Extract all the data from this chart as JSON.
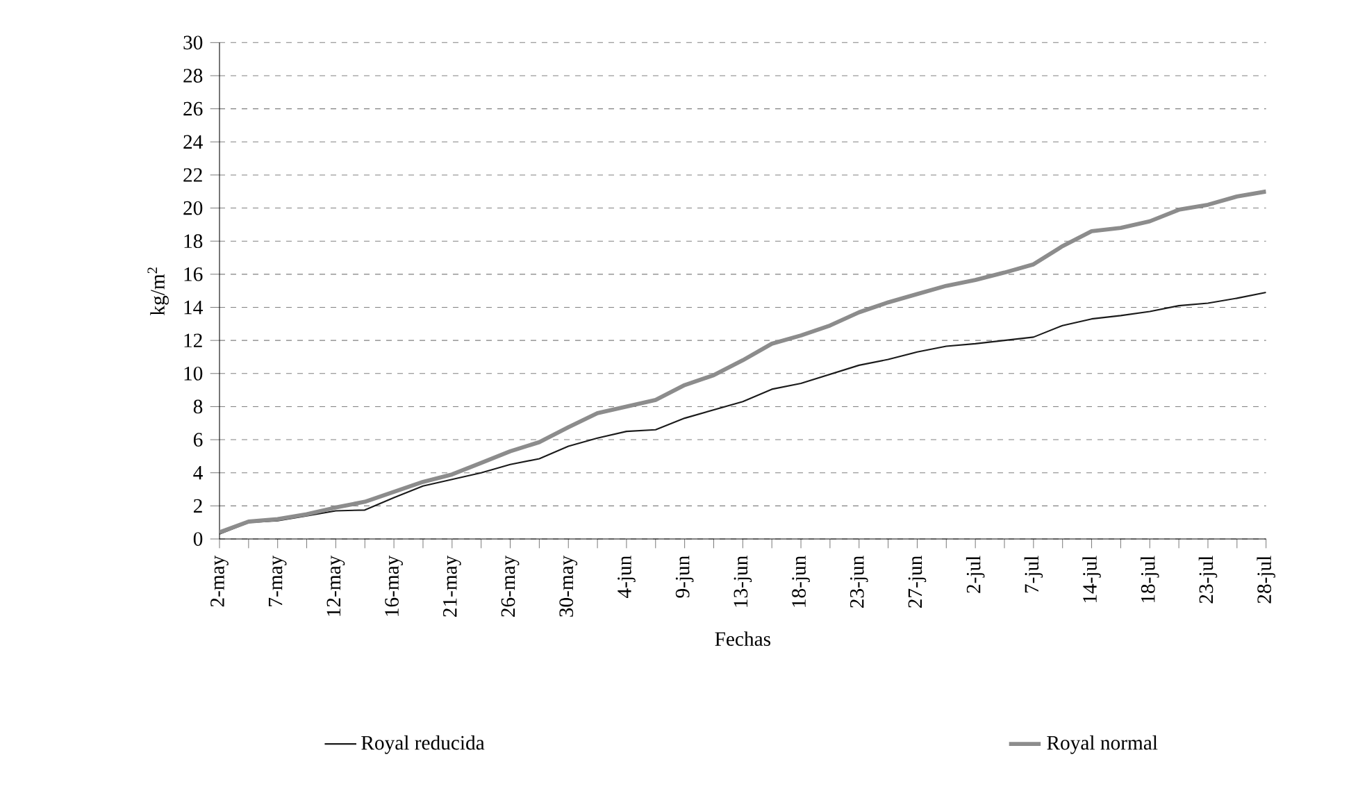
{
  "chart_data": {
    "type": "line",
    "xlabel": "Fechas",
    "ylabel": "kg/m$^{2}$",
    "categories": [
      "2-may",
      null,
      "7-may",
      null,
      "12-may",
      null,
      "16-may",
      null,
      "21-may",
      null,
      "26-may",
      null,
      "30-may",
      null,
      "4-jun",
      null,
      "9-jun",
      null,
      "13-jun",
      null,
      "18-jun",
      null,
      "23-jun",
      null,
      "27-jun",
      null,
      "2-jul",
      null,
      "7-jul",
      null,
      "14-jul",
      null,
      "18-jul",
      null,
      "23-jul",
      null,
      "28-jul"
    ],
    "series": [
      {
        "name": "Royal reducida",
        "color": "#1a1a1a",
        "values": [
          0.3,
          1.0,
          1.1,
          1.4,
          1.7,
          1.75,
          2.5,
          3.2,
          3.6,
          4.0,
          4.5,
          4.85,
          5.6,
          6.1,
          6.5,
          6.6,
          7.3,
          7.8,
          8.3,
          9.05,
          9.4,
          9.95,
          10.5,
          10.85,
          11.3,
          11.65,
          11.8,
          12.0,
          12.2,
          12.9,
          13.3,
          13.5,
          13.75,
          14.1,
          14.25,
          14.55,
          14.9
        ]
      },
      {
        "name": "Royal normal",
        "color": "#8c8c8c",
        "values": [
          0.4,
          1.05,
          1.2,
          1.5,
          1.9,
          2.25,
          2.85,
          3.45,
          3.9,
          4.6,
          5.3,
          5.85,
          6.75,
          7.6,
          8.0,
          8.4,
          9.3,
          9.9,
          10.8,
          11.8,
          12.3,
          12.9,
          13.7,
          14.3,
          14.8,
          15.3,
          15.65,
          16.1,
          16.6,
          17.7,
          18.6,
          18.8,
          19.2,
          19.9,
          20.2,
          20.7,
          21.0
        ]
      }
    ],
    "ylim": [
      0,
      30
    ],
    "yticks": [
      0,
      2,
      4,
      6,
      8,
      10,
      12,
      14,
      16,
      18,
      20,
      22,
      24,
      26,
      28,
      30
    ],
    "grid": "y",
    "legend": "bottom",
    "marker": "none",
    "line_style": "solid"
  }
}
